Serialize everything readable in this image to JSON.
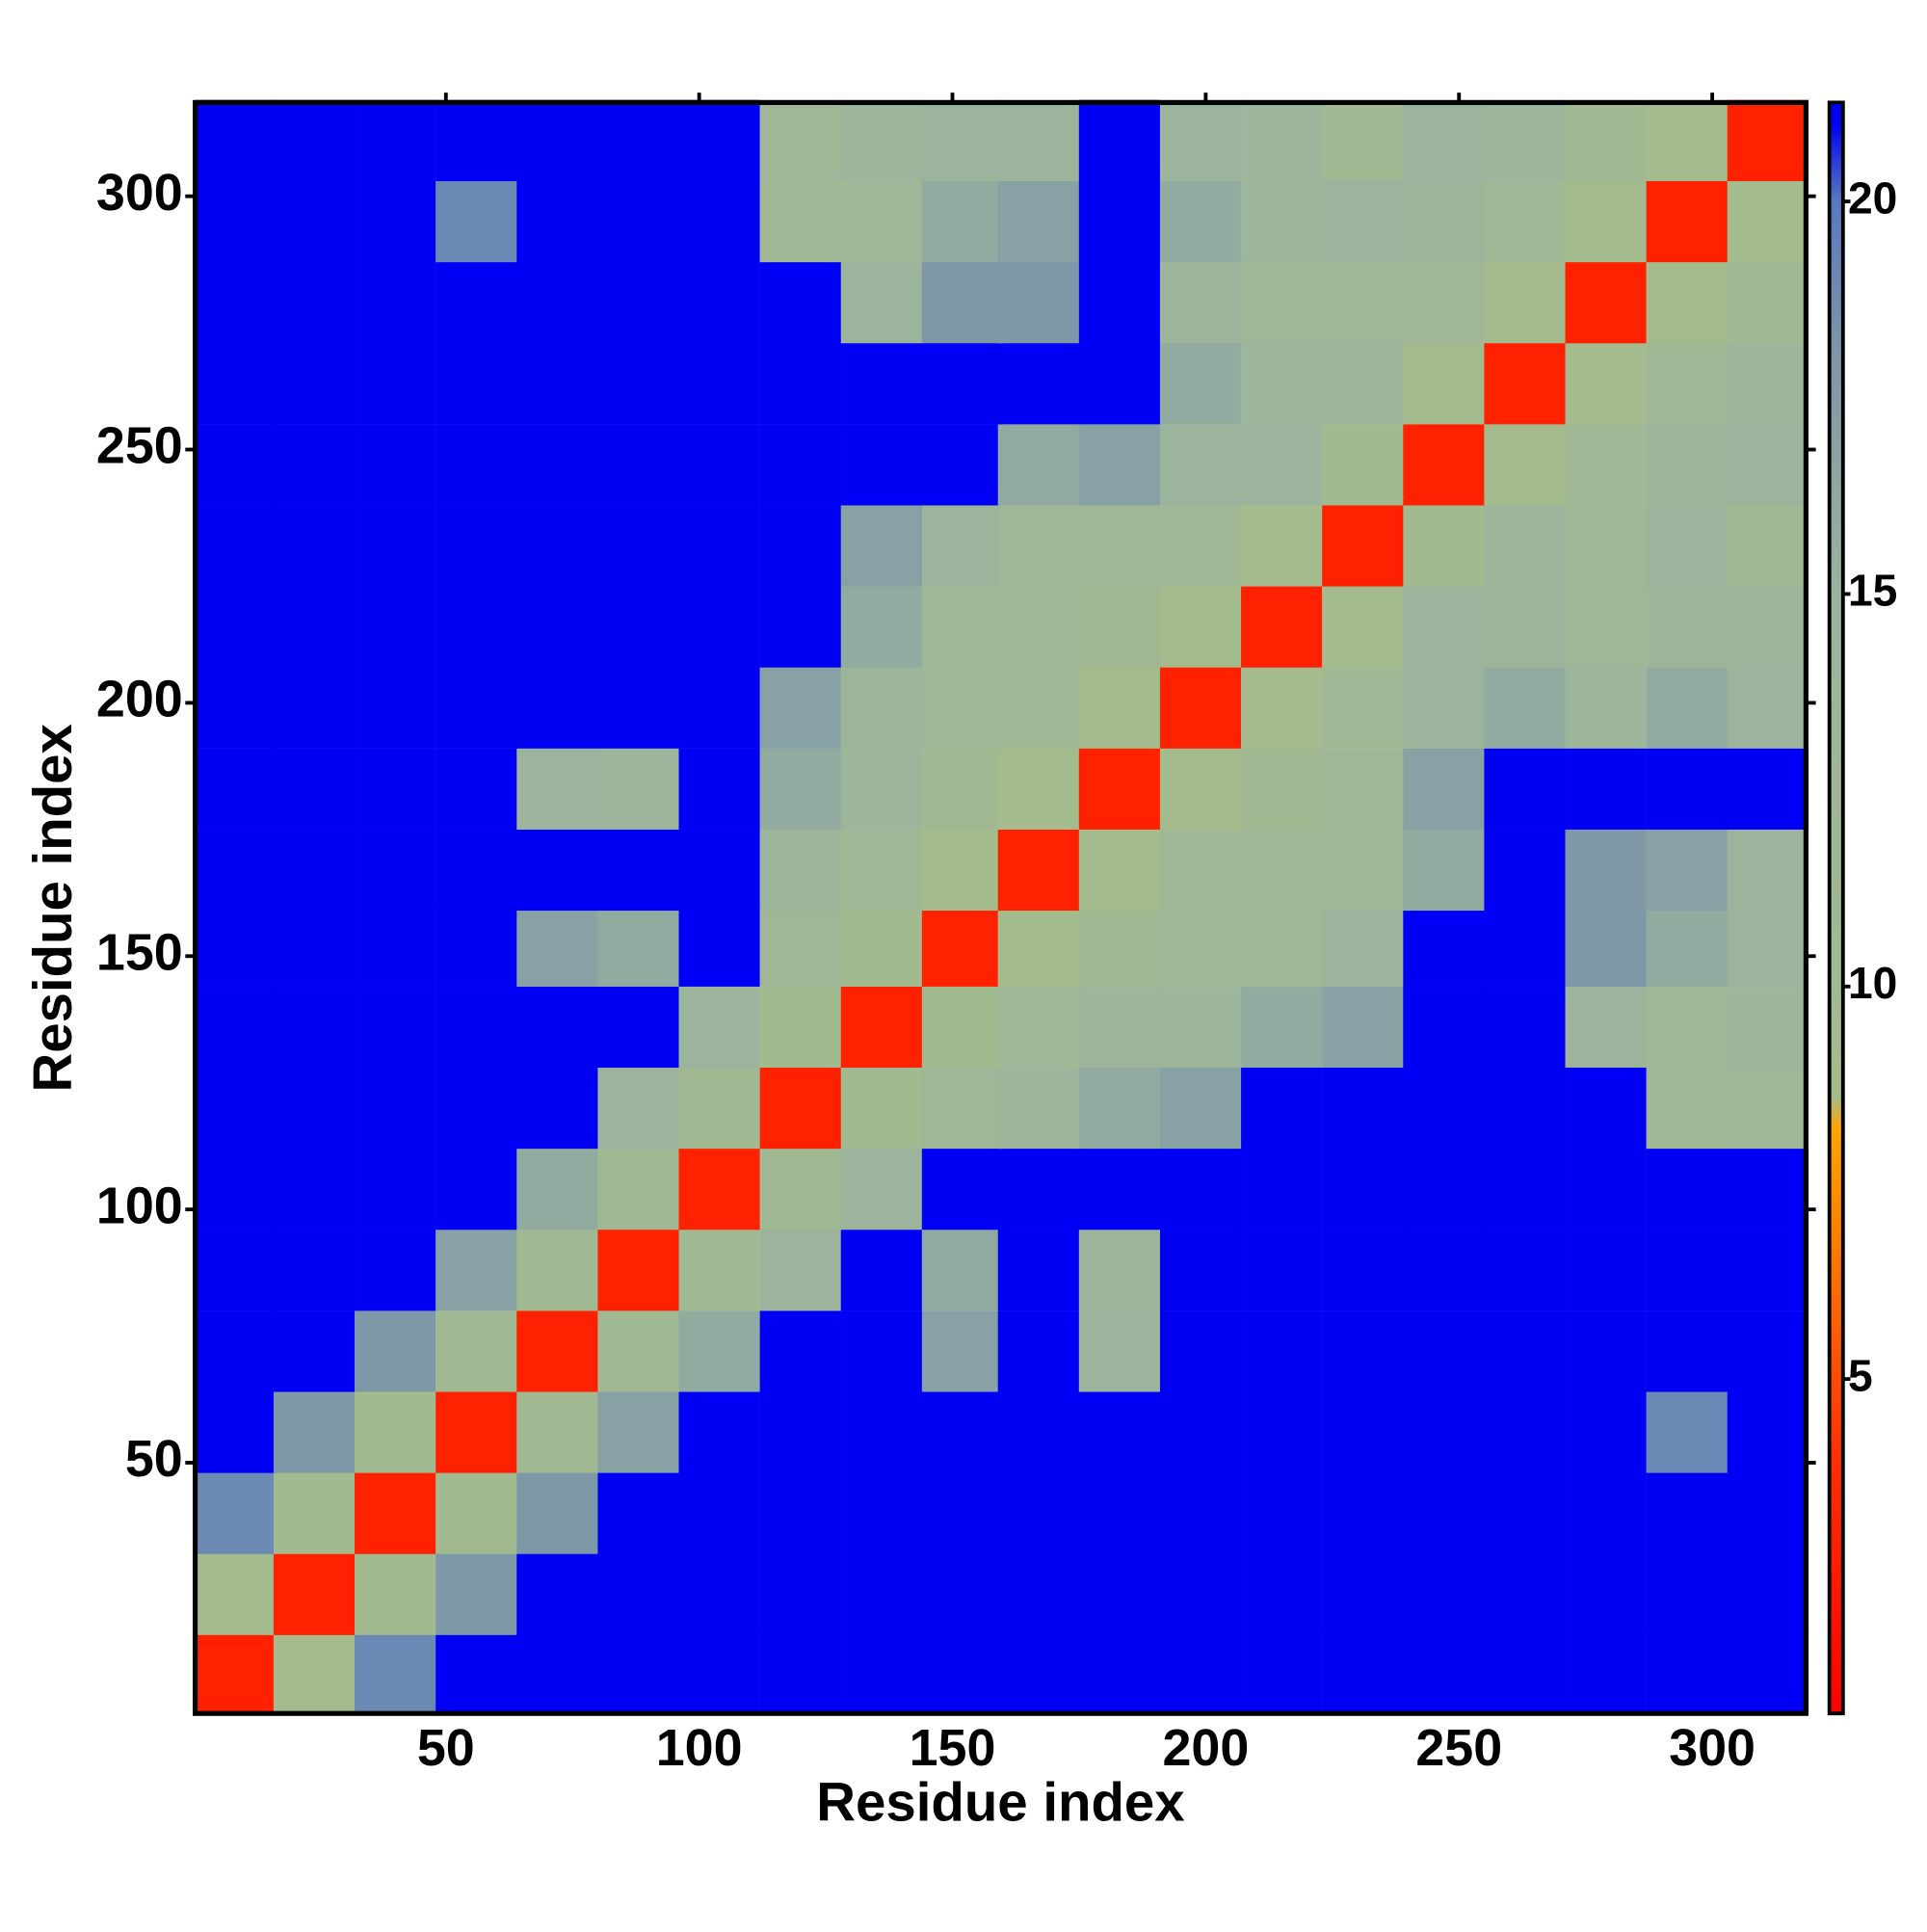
{
  "chart_data": {
    "type": "heatmap",
    "x_label": "Residue index",
    "y_label": "Residue index",
    "x": [
      8.5,
      24,
      40,
      56,
      72,
      88,
      104,
      120,
      136,
      152,
      167,
      183,
      199,
      215,
      231,
      247,
      263,
      279,
      295,
      311
    ],
    "y": [
      8.5,
      24,
      40,
      56,
      72,
      88,
      104,
      120,
      136,
      152,
      167,
      183,
      199,
      215,
      231,
      247,
      263,
      279,
      295,
      311
    ],
    "values": [
      [
        3,
        9,
        19,
        21,
        21,
        21,
        21,
        21,
        21,
        21,
        21,
        21,
        21,
        21,
        21,
        21,
        21,
        21,
        21,
        21
      ],
      [
        9,
        3,
        10,
        18,
        21,
        21,
        21,
        21,
        21,
        21,
        21,
        21,
        21,
        21,
        21,
        21,
        21,
        21,
        21,
        21
      ],
      [
        19,
        10,
        3,
        10,
        18,
        21,
        21,
        21,
        21,
        21,
        21,
        21,
        21,
        21,
        21,
        21,
        21,
        21,
        21,
        21
      ],
      [
        21,
        18,
        10,
        3,
        11,
        17,
        21,
        21,
        21,
        21,
        21,
        21,
        21,
        21,
        21,
        21,
        21,
        21,
        19,
        21
      ],
      [
        21,
        21,
        18,
        11,
        3,
        11,
        16,
        21,
        21,
        17,
        21,
        15,
        21,
        21,
        21,
        21,
        21,
        21,
        21,
        21
      ],
      [
        21,
        21,
        21,
        17,
        11,
        3,
        11,
        15,
        21,
        16,
        21,
        14,
        21,
        21,
        21,
        21,
        21,
        21,
        21,
        21
      ],
      [
        21,
        21,
        21,
        21,
        16,
        11,
        3,
        11,
        15,
        21,
        21,
        21,
        21,
        21,
        21,
        21,
        21,
        21,
        21,
        21
      ],
      [
        21,
        21,
        21,
        21,
        21,
        15,
        11,
        3,
        10,
        13,
        14,
        16,
        17,
        21,
        21,
        21,
        21,
        21,
        12,
        13
      ],
      [
        21,
        21,
        21,
        21,
        21,
        21,
        15,
        10,
        3,
        10,
        12,
        14,
        14,
        16,
        17,
        21,
        21,
        15,
        12,
        14
      ],
      [
        21,
        21,
        21,
        21,
        17,
        16,
        21,
        13,
        10,
        3,
        9,
        11,
        13,
        13,
        15,
        21,
        21,
        18,
        16,
        15
      ],
      [
        21,
        21,
        21,
        21,
        21,
        21,
        21,
        14,
        12,
        9,
        3,
        9,
        12,
        12,
        13,
        16,
        21,
        18,
        17,
        15
      ],
      [
        21,
        21,
        21,
        21,
        15,
        14,
        21,
        16,
        14,
        11,
        9,
        3,
        9,
        11,
        13,
        17,
        21,
        21,
        21,
        21
      ],
      [
        21,
        21,
        21,
        21,
        21,
        21,
        21,
        17,
        14,
        13,
        12,
        9,
        3,
        9,
        12,
        15,
        16,
        14,
        16,
        15
      ],
      [
        21,
        21,
        21,
        21,
        21,
        21,
        21,
        21,
        16,
        13,
        12,
        11,
        9,
        3,
        9,
        15,
        14,
        13,
        14,
        14
      ],
      [
        21,
        21,
        21,
        21,
        21,
        21,
        21,
        21,
        17,
        15,
        13,
        13,
        12,
        9,
        3,
        10,
        14,
        13,
        15,
        11
      ],
      [
        21,
        21,
        21,
        21,
        21,
        21,
        21,
        21,
        21,
        21,
        16,
        17,
        15,
        15,
        10,
        3,
        9,
        12,
        14,
        15
      ],
      [
        21,
        21,
        21,
        21,
        21,
        21,
        21,
        21,
        21,
        21,
        21,
        21,
        16,
        14,
        14,
        9,
        3,
        9,
        12,
        14
      ],
      [
        21,
        21,
        21,
        21,
        21,
        21,
        21,
        21,
        15,
        18,
        18,
        21,
        14,
        13,
        13,
        12,
        9,
        3,
        9,
        11
      ],
      [
        21,
        21,
        21,
        19,
        21,
        21,
        21,
        12,
        12,
        16,
        17,
        21,
        16,
        14,
        15,
        14,
        12,
        9,
        3,
        9
      ],
      [
        21,
        21,
        21,
        21,
        21,
        21,
        21,
        13,
        14,
        15,
        15,
        21,
        15,
        14,
        11,
        15,
        14,
        11,
        9,
        3
      ]
    ],
    "xlim": [
      0.5,
      318.5
    ],
    "ylim": [
      0.5,
      318.5
    ],
    "xticks": [
      50,
      100,
      150,
      200,
      250,
      300
    ],
    "yticks": [
      50,
      100,
      150,
      200,
      250,
      300
    ],
    "clim": [
      0.74,
      21.26
    ],
    "cticks": [
      5,
      10,
      15,
      20
    ],
    "colorscale": [
      [
        0.74,
        "#ff0000"
      ],
      [
        4,
        "#ff3000"
      ],
      [
        8.2,
        "#ffa500"
      ],
      [
        8.6,
        "#a4bc8c"
      ],
      [
        15,
        "#9cb49c"
      ],
      [
        18,
        "#7e98a8"
      ],
      [
        20,
        "#5a78c0"
      ],
      [
        21,
        "#0000f5"
      ],
      [
        21.26,
        "#0000f5"
      ]
    ]
  }
}
